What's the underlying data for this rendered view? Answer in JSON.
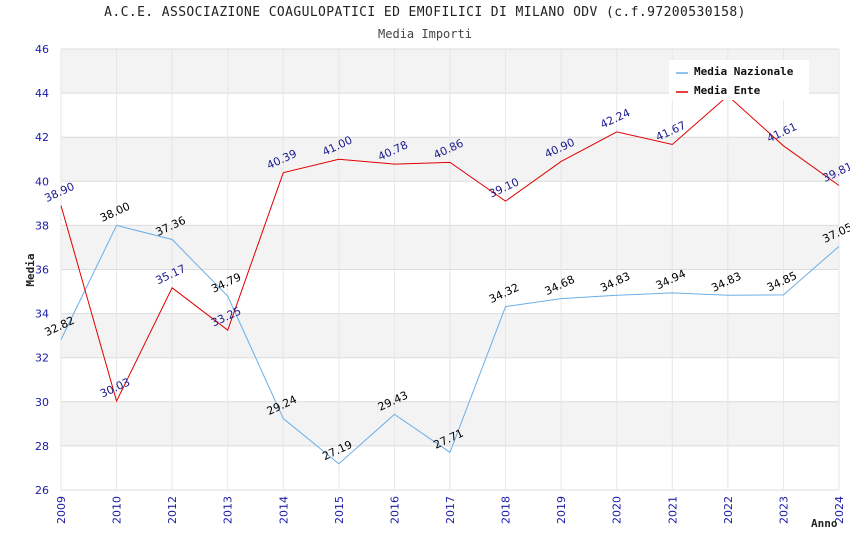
{
  "chart_data": {
    "type": "line",
    "title": "A.C.E. ASSOCIAZIONE COAGULOPATICI ED EMOFILICI DI MILANO ODV (c.f.97200530158)",
    "subtitle": "Media Importi",
    "xlabel": "Anno",
    "ylabel": "Media",
    "ylim": [
      26,
      46
    ],
    "yticks": [
      "26",
      "28",
      "30",
      "32",
      "34",
      "36",
      "38",
      "40",
      "42",
      "44",
      "46"
    ],
    "categories": [
      "2009",
      "2010",
      "2012",
      "2013",
      "2014",
      "2015",
      "2016",
      "2017",
      "2018",
      "2019",
      "2020",
      "2021",
      "2022",
      "2023",
      "2024"
    ],
    "grid": true,
    "legend_position": "top-right",
    "series": [
      {
        "name": "Media Nazionale",
        "color": "#6aaee8",
        "values": [
          32.82,
          38.0,
          37.36,
          34.79,
          29.24,
          27.19,
          29.43,
          27.71,
          34.32,
          34.68,
          34.83,
          34.94,
          34.83,
          34.85,
          37.05
        ],
        "labels": [
          "32.82",
          "38.00",
          "37.36",
          "34.79",
          "29.24",
          "27.19",
          "29.43",
          "27.71",
          "34.32",
          "34.68",
          "34.83",
          "34.94",
          "34.83",
          "34.85",
          "37.05"
        ]
      },
      {
        "name": "Media Ente",
        "color": "#e00000",
        "values": [
          38.9,
          30.03,
          35.17,
          33.25,
          40.39,
          41.0,
          40.78,
          40.86,
          39.1,
          40.9,
          42.24,
          41.67,
          43.88,
          41.61,
          39.81
        ],
        "labels": [
          "38.90",
          "30.03",
          "35.17",
          "33.25",
          "40.39",
          "41.00",
          "40.78",
          "40.86",
          "39.10",
          "40.90",
          "42.24",
          "41.67",
          "",
          "41.61",
          "39.81"
        ]
      }
    ]
  }
}
